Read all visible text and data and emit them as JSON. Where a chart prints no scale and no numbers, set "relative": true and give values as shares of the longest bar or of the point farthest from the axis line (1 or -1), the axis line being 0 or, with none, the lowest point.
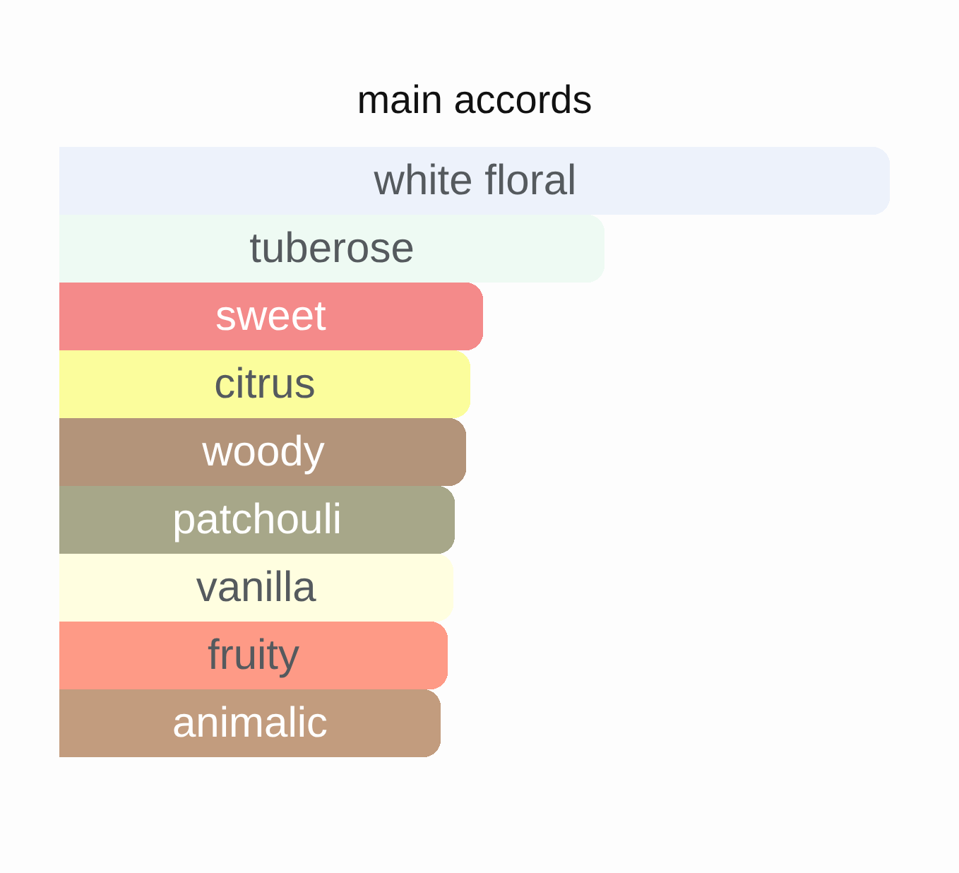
{
  "chart_data": {
    "type": "bar",
    "title": "main accords",
    "orientation": "horizontal",
    "relative": true,
    "tick_labels": false,
    "categories": [
      "white floral",
      "tuberose",
      "sweet",
      "citrus",
      "woody",
      "patchouli",
      "vanilla",
      "fruity",
      "animalic"
    ],
    "values": [
      1,
      0.656,
      0.51,
      0.495,
      0.49,
      0.476,
      0.474,
      0.468,
      0.459
    ],
    "colors": [
      "#edf2fb",
      "#eefaf3",
      "#f48a8a",
      "#fbfd9c",
      "#b3947a",
      "#a7a789",
      "#fffee0",
      "#fe9a86",
      "#c29c7e"
    ]
  }
}
